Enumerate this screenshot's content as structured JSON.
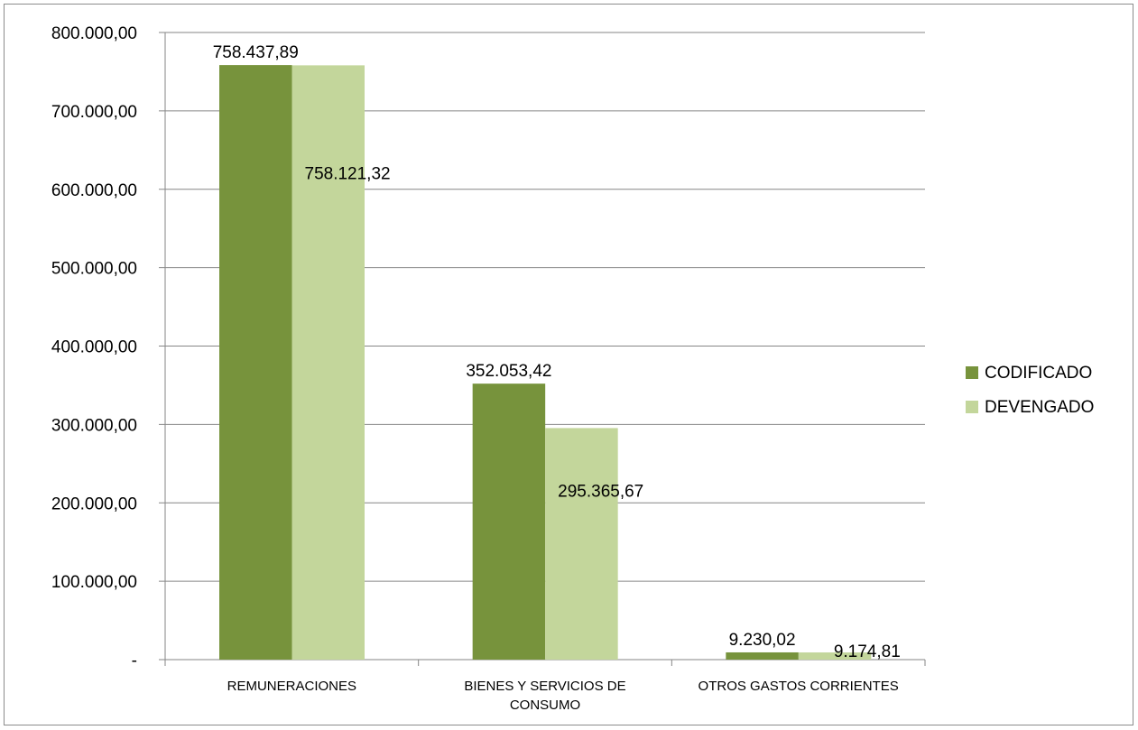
{
  "chart_data": {
    "type": "bar",
    "categories": [
      [
        "REMUNERACIONES"
      ],
      [
        "BIENES Y SERVICIOS DE",
        "CONSUMO"
      ],
      [
        "OTROS GASTOS CORRIENTES"
      ]
    ],
    "series": [
      {
        "name": "CODIFICADO",
        "color": "#77933c",
        "values": [
          758437.89,
          352053.42,
          9230.02
        ],
        "labels": [
          "758.437,89",
          "352.053,42",
          "9.230,02"
        ]
      },
      {
        "name": "DEVENGADO",
        "color": "#c3d69b",
        "values": [
          758121.32,
          295365.67,
          9174.81
        ],
        "labels": [
          "758.121,32",
          "295.365,67",
          "9.174,81"
        ]
      }
    ],
    "ylim": [
      0,
      800000
    ],
    "yticks": [
      0,
      100000,
      200000,
      300000,
      400000,
      500000,
      600000,
      700000,
      800000
    ],
    "ytick_labels": [
      "-",
      "100.000,00",
      "200.000,00",
      "300.000,00",
      "400.000,00",
      "500.000,00",
      "600.000,00",
      "700.000,00",
      "800.000,00"
    ],
    "grid": true,
    "legend": "right",
    "gridline_color": "#868686"
  }
}
